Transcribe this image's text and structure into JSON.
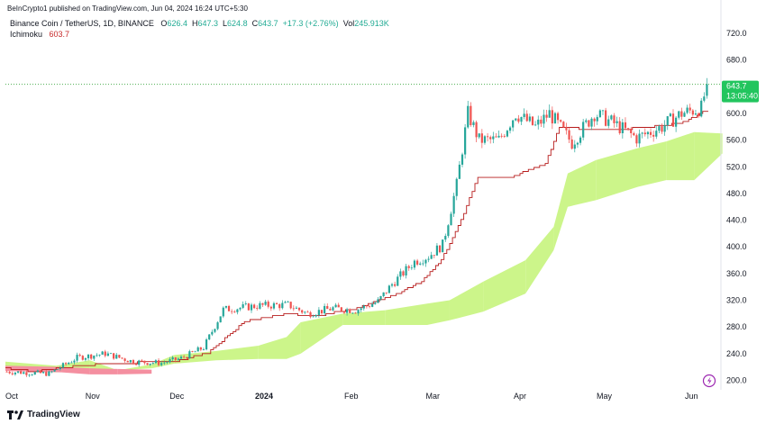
{
  "header": {
    "publisher_line": "BeInCrypto1 published on TradingView.com, Jun 04, 2024 16:24 UTC+5:30"
  },
  "legend": {
    "symbol": "Binance Coin / TetherUS, 1D, BINANCE",
    "o_label": "O",
    "o_value": "626.4",
    "h_label": "H",
    "h_value": "647.3",
    "l_label": "L",
    "l_value": "624.8",
    "c_label": "C",
    "c_value": "643.7",
    "change": "+17.3 (+2.76%)",
    "vol_label": "Vol",
    "vol_value": "245.913K",
    "indicator_name": "Ichimoku",
    "indicator_value": "603.7"
  },
  "price_tag": {
    "price": "643.7",
    "countdown": "13:05:40"
  },
  "footer": {
    "brand": "TradingView"
  },
  "colors": {
    "up": "#26a69a",
    "down": "#ef5350",
    "baseline": "#b71c1c",
    "cloud_bull": "#ccf58a",
    "cloud_bear": "#f48fa0",
    "price_tag": "#22c55e",
    "dotted": "#4caf50"
  },
  "chart_data": {
    "type": "candlestick",
    "title": "Binance Coin / TetherUS, 1D, BINANCE",
    "ylim": [
      180,
      740
    ],
    "y_ticks": [
      "720.0",
      "680.0",
      "600.0",
      "560.0",
      "520.0",
      "480.0",
      "440.0",
      "400.0",
      "360.0",
      "320.0",
      "280.0",
      "240.0",
      "200.0"
    ],
    "x_ticks": [
      "Oct",
      "Nov",
      "Dec",
      "2024",
      "Feb",
      "Mar",
      "Apr",
      "May",
      "Jun"
    ],
    "last_price": 643.7,
    "anchors": [
      {
        "day": 0,
        "price": 213
      },
      {
        "day": 15,
        "price": 210
      },
      {
        "day": 25,
        "price": 234
      },
      {
        "day": 35,
        "price": 240
      },
      {
        "day": 45,
        "price": 228
      },
      {
        "day": 55,
        "price": 226
      },
      {
        "day": 62,
        "price": 233
      },
      {
        "day": 70,
        "price": 249
      },
      {
        "day": 77,
        "price": 306
      },
      {
        "day": 90,
        "price": 312
      },
      {
        "day": 100,
        "price": 313
      },
      {
        "day": 107,
        "price": 300
      },
      {
        "day": 116,
        "price": 308
      },
      {
        "day": 124,
        "price": 305
      },
      {
        "day": 132,
        "price": 318
      },
      {
        "day": 137,
        "price": 344
      },
      {
        "day": 145,
        "price": 378
      },
      {
        "day": 150,
        "price": 386
      },
      {
        "day": 155,
        "price": 403
      },
      {
        "day": 160,
        "price": 493
      },
      {
        "day": 164,
        "price": 600
      },
      {
        "day": 168,
        "price": 560
      },
      {
        "day": 175,
        "price": 560
      },
      {
        "day": 181,
        "price": 600
      },
      {
        "day": 188,
        "price": 580
      },
      {
        "day": 193,
        "price": 600
      },
      {
        "day": 201,
        "price": 556
      },
      {
        "day": 209,
        "price": 600
      },
      {
        "day": 216,
        "price": 585
      },
      {
        "day": 224,
        "price": 563
      },
      {
        "day": 233,
        "price": 580
      },
      {
        "day": 240,
        "price": 600
      },
      {
        "day": 247,
        "price": 608
      },
      {
        "day": 249,
        "price": 643.7
      }
    ],
    "baseline": [
      {
        "day": 0,
        "price": 218
      },
      {
        "day": 10,
        "price": 213
      },
      {
        "day": 22,
        "price": 220
      },
      {
        "day": 35,
        "price": 225
      },
      {
        "day": 50,
        "price": 227
      },
      {
        "day": 60,
        "price": 228
      },
      {
        "day": 72,
        "price": 241
      },
      {
        "day": 85,
        "price": 288
      },
      {
        "day": 100,
        "price": 300
      },
      {
        "day": 110,
        "price": 296
      },
      {
        "day": 125,
        "price": 308
      },
      {
        "day": 138,
        "price": 327
      },
      {
        "day": 148,
        "price": 348
      },
      {
        "day": 155,
        "price": 380
      },
      {
        "day": 162,
        "price": 440
      },
      {
        "day": 168,
        "price": 505
      },
      {
        "day": 180,
        "price": 505
      },
      {
        "day": 192,
        "price": 525
      },
      {
        "day": 197,
        "price": 580
      },
      {
        "day": 210,
        "price": 575
      },
      {
        "day": 225,
        "price": 578
      },
      {
        "day": 240,
        "price": 585
      },
      {
        "day": 249,
        "price": 603.7
      }
    ],
    "cloud": [
      {
        "day": 0,
        "a": 216,
        "b": 228
      },
      {
        "day": 18,
        "a": 212,
        "b": 222
      },
      {
        "day": 30,
        "a": 214,
        "b": 230
      },
      {
        "day": 40,
        "a": 215,
        "b": 215
      },
      {
        "day": 52,
        "a": 218,
        "b": 224
      },
      {
        "day": 60,
        "a": 225,
        "b": 238
      },
      {
        "day": 75,
        "a": 230,
        "b": 244
      },
      {
        "day": 90,
        "a": 232,
        "b": 252
      },
      {
        "day": 100,
        "a": 232,
        "b": 265
      },
      {
        "day": 105,
        "a": 240,
        "b": 287
      },
      {
        "day": 120,
        "a": 283,
        "b": 300
      },
      {
        "day": 135,
        "a": 283,
        "b": 305
      },
      {
        "day": 150,
        "a": 283,
        "b": 315
      },
      {
        "day": 158,
        "a": 290,
        "b": 320
      },
      {
        "day": 170,
        "a": 303,
        "b": 348
      },
      {
        "day": 185,
        "a": 330,
        "b": 380
      },
      {
        "day": 195,
        "a": 395,
        "b": 430
      },
      {
        "day": 200,
        "a": 460,
        "b": 510
      },
      {
        "day": 210,
        "a": 470,
        "b": 530
      },
      {
        "day": 225,
        "a": 490,
        "b": 548
      },
      {
        "day": 235,
        "a": 500,
        "b": 558
      },
      {
        "day": 245,
        "a": 500,
        "b": 572
      },
      {
        "day": 255,
        "a": 540,
        "b": 570
      }
    ]
  }
}
